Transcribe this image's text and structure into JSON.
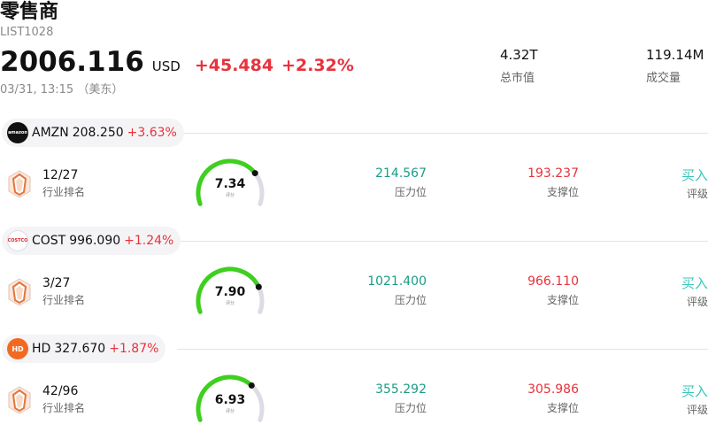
{
  "header": {
    "title": "零售商",
    "code": "LIST1028",
    "price": "2006.116",
    "currency": "USD",
    "change": "+45.484",
    "change_pct": "+2.32%",
    "time": "03/31, 13:15 （美东）"
  },
  "stats": {
    "market_cap": {
      "value": "4.32T",
      "label": "总市值"
    },
    "volume": {
      "value": "119.14M",
      "label": "成交量"
    }
  },
  "labels": {
    "rank": "行业排名",
    "score": "评分",
    "resistance": "压力位",
    "support": "支撑位",
    "rating": "评级"
  },
  "stocks": [
    {
      "symbol": "AMZN",
      "price": "208.250",
      "change_pct": "+3.63%",
      "logo": "amazon-logo",
      "rank": "12/27",
      "score": 7.34,
      "score_text": "7.34",
      "resistance": "214.567",
      "support": "193.237",
      "rating": "买入"
    },
    {
      "symbol": "COST",
      "price": "996.090",
      "change_pct": "+1.24%",
      "logo": "costco-logo",
      "rank": "3/27",
      "score": 7.9,
      "score_text": "7.90",
      "resistance": "1021.400",
      "support": "966.110",
      "rating": "买入"
    },
    {
      "symbol": "HD",
      "price": "327.670",
      "change_pct": "+1.87%",
      "logo": "home-depot-logo",
      "rank": "42/96",
      "score": 6.93,
      "score_text": "6.93",
      "resistance": "355.292",
      "support": "305.986",
      "rating": "买入"
    }
  ],
  "colors": {
    "up": "#e8323c",
    "green_value": "#1b9c85",
    "gauge_fill": "#3fcf1f",
    "gauge_track": "#dcdce6",
    "rating": "#38c6b9"
  }
}
